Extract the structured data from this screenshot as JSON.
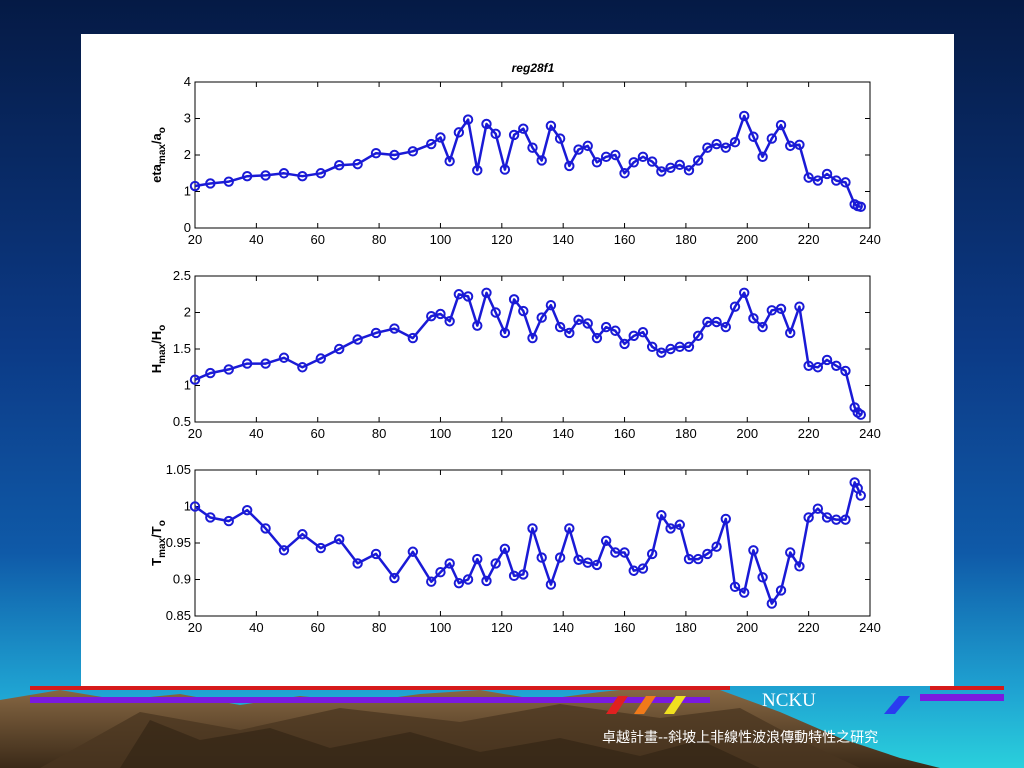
{
  "figure_title": "reg28f1",
  "footer": {
    "brand": "NCKU",
    "caption": "卓越計畫--斜坡上非線性波浪傳動特性之研究"
  },
  "colors": {
    "line": "#1a1ad6",
    "axis": "#000000",
    "panel": "#ffffff",
    "bg_top": "#051a45",
    "bg_mid": "#0d3f8e",
    "bg_bottom": "#22b8d8"
  },
  "chart_data": [
    {
      "type": "line",
      "ylabel": "eta_max/a_o",
      "ylabel_parts": [
        "eta",
        "max",
        "/a",
        "o"
      ],
      "xlim": [
        20,
        240
      ],
      "ylim": [
        0,
        4
      ],
      "xticks": [
        20,
        40,
        60,
        80,
        100,
        120,
        140,
        160,
        180,
        200,
        220,
        240
      ],
      "yticks": [
        0,
        1,
        2,
        3,
        4
      ],
      "grid": false,
      "marker": "circle",
      "x": [
        20,
        25,
        31,
        37,
        43,
        49,
        55,
        61,
        67,
        73,
        79,
        85,
        91,
        97,
        100,
        103,
        106,
        109,
        112,
        115,
        118,
        121,
        124,
        127,
        130,
        133,
        136,
        139,
        142,
        145,
        148,
        151,
        154,
        157,
        160,
        163,
        166,
        169,
        172,
        175,
        178,
        181,
        184,
        187,
        190,
        193,
        196,
        199,
        202,
        205,
        208,
        211,
        214,
        217,
        220,
        223,
        226,
        229,
        232,
        235,
        236,
        237
      ],
      "y": [
        1.15,
        1.22,
        1.27,
        1.42,
        1.44,
        1.5,
        1.42,
        1.5,
        1.72,
        1.75,
        2.05,
        2.0,
        2.1,
        2.3,
        2.48,
        1.83,
        2.62,
        2.97,
        1.58,
        2.85,
        2.58,
        1.6,
        2.55,
        2.72,
        2.2,
        1.85,
        2.8,
        2.45,
        1.7,
        2.15,
        2.25,
        1.8,
        1.95,
        2.0,
        1.5,
        1.8,
        1.95,
        1.82,
        1.55,
        1.65,
        1.73,
        1.58,
        1.85,
        2.2,
        2.3,
        2.2,
        2.35,
        3.07,
        2.5,
        1.95,
        2.45,
        2.82,
        2.25,
        2.28,
        1.38,
        1.3,
        1.48,
        1.3,
        1.25,
        0.65,
        0.6,
        0.58
      ]
    },
    {
      "type": "line",
      "ylabel": "H_max/H_o",
      "ylabel_parts": [
        "H",
        "max",
        "/H",
        "o"
      ],
      "xlim": [
        20,
        240
      ],
      "ylim": [
        0.5,
        2.5
      ],
      "xticks": [
        20,
        40,
        60,
        80,
        100,
        120,
        140,
        160,
        180,
        200,
        220,
        240
      ],
      "yticks": [
        0.5,
        1,
        1.5,
        2,
        2.5
      ],
      "grid": false,
      "marker": "circle",
      "x": [
        20,
        25,
        31,
        37,
        43,
        49,
        55,
        61,
        67,
        73,
        79,
        85,
        91,
        97,
        100,
        103,
        106,
        109,
        112,
        115,
        118,
        121,
        124,
        127,
        130,
        133,
        136,
        139,
        142,
        145,
        148,
        151,
        154,
        157,
        160,
        163,
        166,
        169,
        172,
        175,
        178,
        181,
        184,
        187,
        190,
        193,
        196,
        199,
        202,
        205,
        208,
        211,
        214,
        217,
        220,
        223,
        226,
        229,
        232,
        235,
        236,
        237
      ],
      "y": [
        1.08,
        1.17,
        1.22,
        1.3,
        1.3,
        1.38,
        1.25,
        1.37,
        1.5,
        1.63,
        1.72,
        1.78,
        1.65,
        1.95,
        1.98,
        1.88,
        2.25,
        2.22,
        1.82,
        2.27,
        2.0,
        1.72,
        2.18,
        2.02,
        1.65,
        1.93,
        2.1,
        1.8,
        1.72,
        1.9,
        1.85,
        1.65,
        1.8,
        1.75,
        1.57,
        1.68,
        1.73,
        1.53,
        1.45,
        1.5,
        1.53,
        1.53,
        1.68,
        1.87,
        1.87,
        1.8,
        2.08,
        2.27,
        1.92,
        1.8,
        2.03,
        2.05,
        1.72,
        2.08,
        1.27,
        1.25,
        1.35,
        1.27,
        1.2,
        0.7,
        0.63,
        0.6
      ]
    },
    {
      "type": "line",
      "ylabel": "T_max/T_o",
      "ylabel_parts": [
        "T",
        "max",
        "/T",
        "o"
      ],
      "xlim": [
        20,
        240
      ],
      "ylim": [
        0.85,
        1.05
      ],
      "xticks": [
        20,
        40,
        60,
        80,
        100,
        120,
        140,
        160,
        180,
        200,
        220,
        240
      ],
      "yticks": [
        0.85,
        0.9,
        0.95,
        1,
        1.05
      ],
      "grid": false,
      "marker": "circle",
      "x": [
        20,
        25,
        31,
        37,
        43,
        49,
        55,
        61,
        67,
        73,
        79,
        85,
        91,
        97,
        100,
        103,
        106,
        109,
        112,
        115,
        118,
        121,
        124,
        127,
        130,
        133,
        136,
        139,
        142,
        145,
        148,
        151,
        154,
        157,
        160,
        163,
        166,
        169,
        172,
        175,
        178,
        181,
        184,
        187,
        190,
        193,
        196,
        199,
        202,
        205,
        208,
        211,
        214,
        217,
        220,
        223,
        226,
        229,
        232,
        235,
        236,
        237
      ],
      "y": [
        1.0,
        0.985,
        0.98,
        0.995,
        0.97,
        0.94,
        0.962,
        0.943,
        0.955,
        0.922,
        0.935,
        0.902,
        0.938,
        0.897,
        0.91,
        0.922,
        0.895,
        0.9,
        0.928,
        0.898,
        0.922,
        0.942,
        0.905,
        0.907,
        0.97,
        0.93,
        0.893,
        0.93,
        0.97,
        0.927,
        0.923,
        0.92,
        0.953,
        0.937,
        0.937,
        0.912,
        0.915,
        0.935,
        0.988,
        0.97,
        0.975,
        0.928,
        0.928,
        0.935,
        0.945,
        0.983,
        0.89,
        0.882,
        0.94,
        0.903,
        0.867,
        0.885,
        0.937,
        0.918,
        0.985,
        0.997,
        0.985,
        0.982,
        0.982,
        1.033,
        1.025,
        1.015
      ]
    }
  ]
}
